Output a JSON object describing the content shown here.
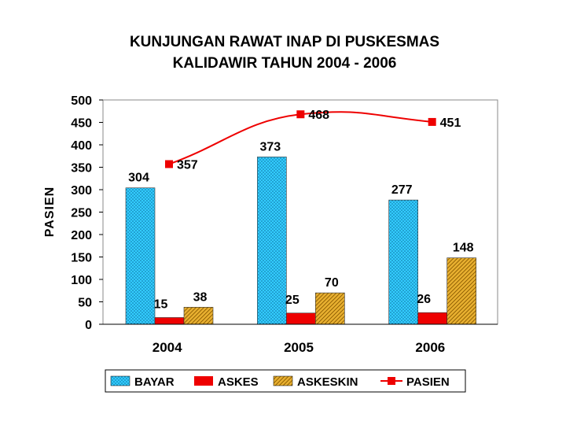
{
  "chart_data": {
    "type": "bar",
    "title": "KUNJUNGAN RAWAT INAP DI PUSKESMAS",
    "subtitle": "KALIDAWIR TAHUN 2004 - 2006",
    "ylabel": "PASIEN",
    "xlabel": "",
    "ylim": [
      0,
      500
    ],
    "yticks": [
      "0",
      "50",
      "100",
      "150",
      "200",
      "250",
      "300",
      "350",
      "400",
      "450",
      "500"
    ],
    "grid": false,
    "legend_position": "bottom",
    "categories": [
      "2004",
      "2005",
      "2006"
    ],
    "series": [
      {
        "name": "BAYAR",
        "type": "bar",
        "values": [
          304,
          373,
          277
        ],
        "labels": [
          "304",
          "373",
          "277"
        ],
        "color": "#33ccff"
      },
      {
        "name": "ASKES",
        "type": "bar",
        "values": [
          15,
          25,
          26
        ],
        "labels": [
          "15",
          "25",
          "26"
        ],
        "color": "#ee0000"
      },
      {
        "name": "ASKESKIN",
        "type": "bar",
        "values": [
          38,
          70,
          148
        ],
        "labels": [
          "38",
          "70",
          "148"
        ],
        "color": "#e0a020"
      },
      {
        "name": "PASIEN",
        "type": "line",
        "values": [
          357,
          468,
          451
        ],
        "labels": [
          "357",
          "468",
          "451"
        ],
        "color": "#ee0000"
      }
    ]
  }
}
